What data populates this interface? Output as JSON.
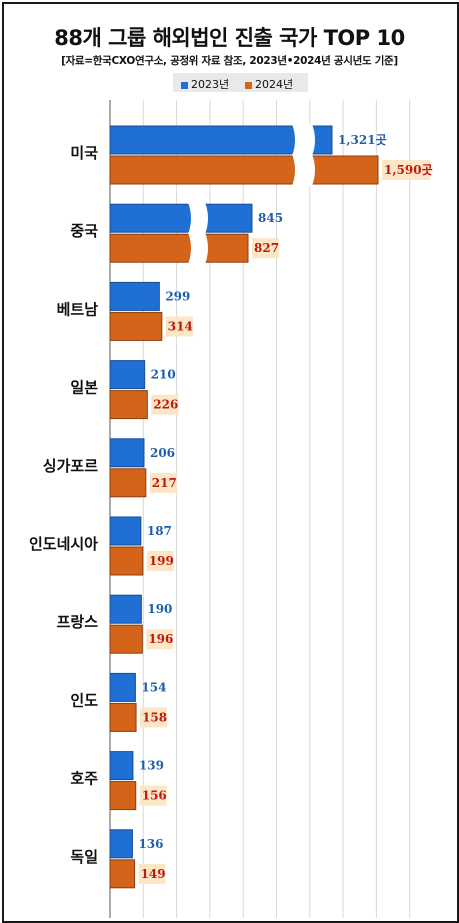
{
  "header": {
    "title": "88개 그룹 해외법인 진출 국가 TOP 10",
    "subtitle": "[자료=한국CXO연구소, 공정위 자료 참조, 2023년•2024년 공시년도 기준]"
  },
  "colors": {
    "s2023": "#1f6fd4",
    "s2024": "#d4641a",
    "s2023_label": "#1f5fa8",
    "s2024_label": "#c0180e",
    "label_bg_2024": "#fbe6c6",
    "grid": "#d9d9d9"
  },
  "chart_data": {
    "type": "bar",
    "orientation": "horizontal",
    "categories": [
      "미국",
      "중국",
      "베트남",
      "일본",
      "싱가포르",
      "인도네시아",
      "프랑스",
      "인도",
      "호주",
      "독일"
    ],
    "series": [
      {
        "name": "2023년",
        "values": [
          1321,
          845,
          299,
          210,
          206,
          187,
          190,
          154,
          139,
          136
        ],
        "labels": [
          "1,321곳",
          "845",
          "299",
          "210",
          "206",
          "187",
          "190",
          "154",
          "139",
          "136"
        ]
      },
      {
        "name": "2024년",
        "values": [
          1590,
          827,
          314,
          226,
          217,
          199,
          196,
          158,
          156,
          149
        ],
        "labels": [
          "1,590곳",
          "827",
          "314",
          "226",
          "217",
          "199",
          "196",
          "158",
          "156",
          "149"
        ]
      }
    ],
    "axis_breaks": [
      "미국",
      "중국"
    ],
    "grid": true,
    "legend_position": "top"
  }
}
